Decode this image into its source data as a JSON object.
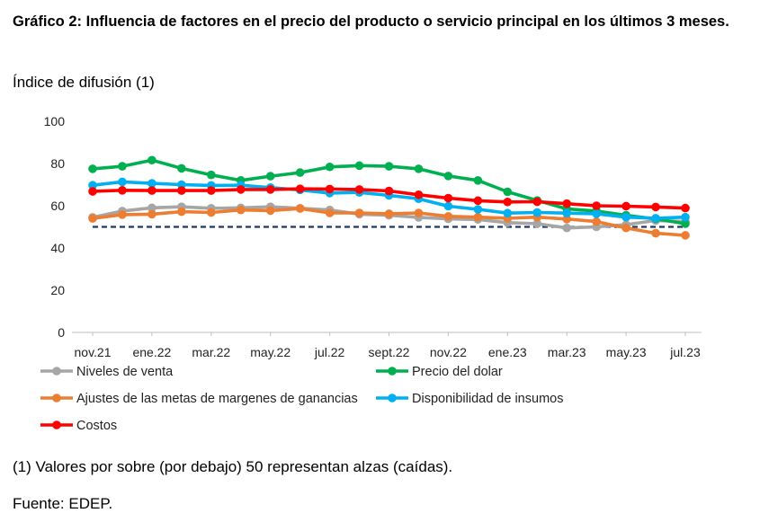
{
  "header": {
    "title": "Gráfico 2: Influencia de factores en el precio del producto o servicio principal en los últimos 3 meses.",
    "subtitle": "Índice de difusión (1)"
  },
  "footer": {
    "note": "(1) Valores por sobre (por debajo) 50 representan alzas (caídas).",
    "source": "Fuente: EDEP."
  },
  "chart_data": {
    "type": "line",
    "title": "Gráfico 2: Influencia de factores en el precio del producto o servicio principal en los últimos 3 meses.",
    "ylabel": "Índice de difusión (1)",
    "ylim": [
      0,
      100
    ],
    "yticks": [
      "0",
      "20",
      "40",
      "60",
      "80",
      "100"
    ],
    "x": [
      "nov.21",
      "dic.21",
      "ene.22",
      "feb.22",
      "mar.22",
      "abr.22",
      "may.22",
      "jun.22",
      "jul.22",
      "ago.22",
      "sept.22",
      "oct.22",
      "nov.22",
      "dic.22",
      "ene.23",
      "feb.23",
      "mar.23",
      "abr.23",
      "may.23",
      "jun.23",
      "jul.23"
    ],
    "xtick_labels": [
      "nov.21",
      "ene.22",
      "mar.22",
      "may.22",
      "jul.22",
      "sept.22",
      "nov.22",
      "ene.23",
      "mar.23",
      "may.23",
      "jul.23"
    ],
    "reference_line": {
      "value": 50,
      "style": "dashed",
      "color": "#1f3864"
    },
    "grid": false,
    "legend_position": "bottom",
    "series": [
      {
        "name": "Niveles de venta",
        "color": "#a6a6a6",
        "values": [
          54.5,
          57.5,
          59,
          59.5,
          58.8,
          59,
          59.5,
          58.8,
          58,
          56,
          55.5,
          54.5,
          53.8,
          53.5,
          52,
          51.5,
          49.5,
          50,
          51,
          53,
          52.5
        ]
      },
      {
        "name": "Precio del dolar",
        "color": "#00b050",
        "values": [
          77.5,
          78.7,
          81.6,
          77.7,
          74.6,
          72,
          74,
          75.7,
          78.4,
          79,
          78.7,
          77.5,
          74.1,
          72,
          66.6,
          62.5,
          58.5,
          57.5,
          55.5,
          53.8,
          51.5
        ]
      },
      {
        "name": "Ajustes de las metas de margenes de ganancias",
        "color": "#ed7d31",
        "values": [
          54,
          55.8,
          56,
          57.2,
          56.8,
          58,
          57.7,
          58.7,
          56.6,
          56.6,
          56.2,
          56.6,
          55,
          54.6,
          54.1,
          54.6,
          53.7,
          52.5,
          49.5,
          47,
          46
        ]
      },
      {
        "name": "Disponibilidad de insumos",
        "color": "#00b0f0",
        "values": [
          69.7,
          71.3,
          70.6,
          70,
          69.6,
          69.7,
          68.6,
          67.5,
          66,
          66.3,
          64.9,
          63.3,
          59.8,
          58.3,
          56.5,
          56.8,
          56.5,
          56.2,
          54.6,
          54.1,
          54.6
        ]
      },
      {
        "name": "Costos",
        "color": "#ff0000",
        "values": [
          66.8,
          67.3,
          67.2,
          67.2,
          67.2,
          67.7,
          67.7,
          68,
          67.9,
          67.7,
          67,
          65.2,
          63.6,
          62.4,
          61.8,
          61.9,
          61,
          60,
          59.8,
          59.4,
          58.9
        ]
      }
    ]
  }
}
